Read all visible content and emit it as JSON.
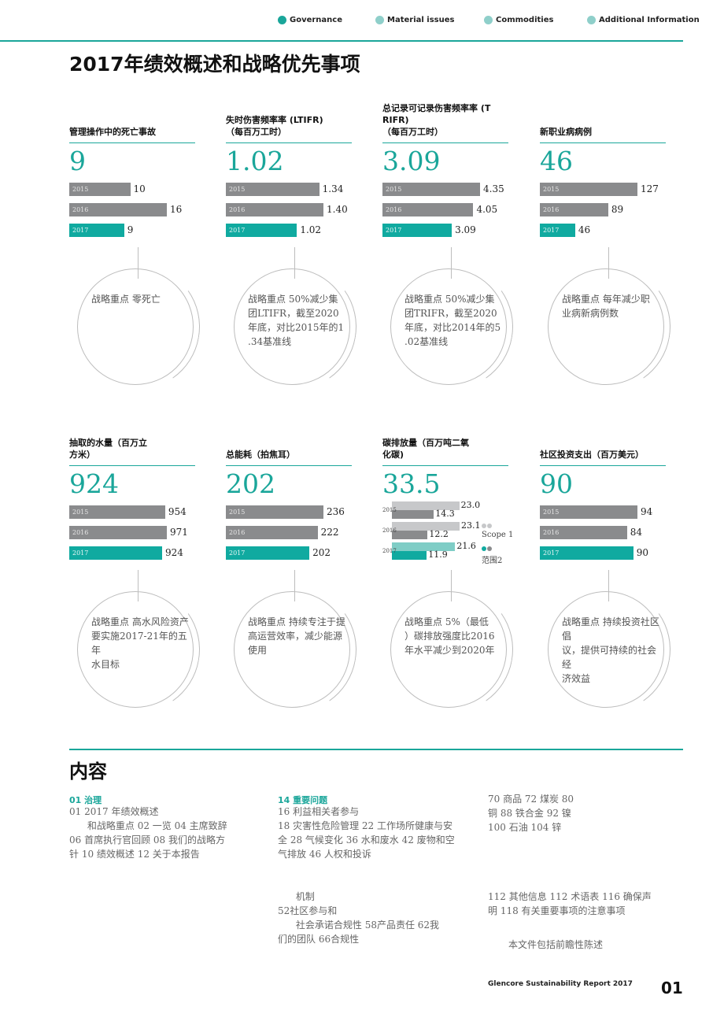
{
  "nav": [
    {
      "label": "Governance",
      "style": "solid"
    },
    {
      "label": "Material issues",
      "style": "light"
    },
    {
      "label": "Commodities",
      "style": "light"
    },
    {
      "label": "Additional Information",
      "style": "light"
    }
  ],
  "title": "2017年绩效概述和战略优先事项",
  "kpis": [
    {
      "title_lines": [
        "管理操作中的死亡事故"
      ],
      "value": "9",
      "bars": [
        {
          "year": "2015",
          "value": 10
        },
        {
          "year": "2016",
          "value": 16
        },
        {
          "year": "2017",
          "value": 9
        }
      ],
      "max": 16,
      "priority_lines": [
        "战略重点 零死亡"
      ]
    },
    {
      "title_lines": [
        "失时伤害频率率 (LTIFR)",
        "（每百万工时）"
      ],
      "value": "1.02",
      "bars": [
        {
          "year": "2015",
          "value": "1.34"
        },
        {
          "year": "2016",
          "value": "1.40"
        },
        {
          "year": "2017",
          "value": "1.02"
        }
      ],
      "max": 1.4,
      "priority_lines": [
        "战略重点 50%减少集",
        "团LTIFR，截至2020",
        "年底，对比2015年的1",
        ".34基准线"
      ]
    },
    {
      "title_lines": [
        "总记录可记录伤害频率率 (T",
        "RIFR)",
        "（每百万工时）"
      ],
      "value": "3.09",
      "bars": [
        {
          "year": "2015",
          "value": "4.35"
        },
        {
          "year": "2016",
          "value": "4.05"
        },
        {
          "year": "2017",
          "value": "3.09"
        }
      ],
      "max": 4.35,
      "priority_lines": [
        "战略重点 50%减少集",
        "团TRIFR，截至2020",
        "年底，对比2014年的5",
        ".02基准线"
      ]
    },
    {
      "title_lines": [
        "新职业病病例"
      ],
      "value": "46",
      "bars": [
        {
          "year": "2015",
          "value": 127
        },
        {
          "year": "2016",
          "value": 89
        },
        {
          "year": "2017",
          "value": 46
        }
      ],
      "max": 127,
      "priority_lines": [
        "战略重点 每年减少职",
        "业病新病例数"
      ]
    },
    {
      "title_lines": [
        "抽取的水量（百万立",
        "方米）"
      ],
      "value": "924",
      "bars": [
        {
          "year": "2015",
          "value": 954
        },
        {
          "year": "2016",
          "value": 971
        },
        {
          "year": "2017",
          "value": 924
        }
      ],
      "max": 971,
      "priority_lines": [
        "战略重点 高水风险资产",
        "要实施2017-21年的五年",
        "水目标"
      ]
    },
    {
      "title_lines": [
        "总能耗（拍焦耳）"
      ],
      "value": "202",
      "bars": [
        {
          "year": "2015",
          "value": 236
        },
        {
          "year": "2016",
          "value": 222
        },
        {
          "year": "2017",
          "value": 202
        }
      ],
      "max": 236,
      "priority_lines": [
        "战略重点 持续专注于提",
        "高运营效率，减少能源",
        "使用"
      ]
    },
    {
      "title_lines": [
        "碳排放量（百万吨二氧",
        "化碳)"
      ],
      "value": "33.5",
      "priority_lines": [
        "战略重点 5%（最低",
        "）碳排放强度比2016",
        "年水平减少到2020年"
      ]
    },
    {
      "title_lines": [
        "社区投资支出（百万美元）"
      ],
      "value": "90",
      "bars": [
        {
          "year": "2015",
          "value": 94
        },
        {
          "year": "2016",
          "value": 84
        },
        {
          "year": "2017",
          "value": 90
        }
      ],
      "max": 94,
      "priority_lines": [
        "战略重点 持续投资社区倡",
        "议，提供可持续的社会经",
        "济效益"
      ]
    }
  ],
  "chart_data": {
    "type": "bar",
    "categories": [
      "2015",
      "2016",
      "2017"
    ],
    "series": [
      {
        "name": "Scope 1",
        "values": [
          23.0,
          23.1,
          21.6
        ]
      },
      {
        "name": "范围2",
        "values": [
          14.3,
          12.2,
          11.9
        ]
      }
    ],
    "value_labels": [
      "23.0",
      "23.1",
      "21.6",
      "14.3",
      "12.2",
      "11.9"
    ],
    "max": 23.1
  },
  "colors": {
    "accent": "#1aa69a",
    "bar_grey": "#8a8b8d",
    "scope1_prior": "#c7c8ca",
    "scope1_2017": "#7fcdc6",
    "scope2_prior": "#8a8b8d",
    "scope2_2017": "#10aaa0"
  },
  "contents": {
    "title": "内容",
    "col1": {
      "head": "01 治理",
      "lines": [
        "01 2017 年绩效概述",
        "      和战略重点 02 一览 04 主席致辞",
        "06 首席执行官回顾 08 我们的战略方",
        "针 10 绩效概述 12 关于本报告"
      ]
    },
    "col2": {
      "head": "14 重要问题",
      "lines": [
        "16 利益相关者参与",
        "18 灾害性危险管理 22 工作场所健康与安",
        "全 28 气候变化 36 水和废水 42 废物和空",
        "气排放 46 人权和投诉"
      ]
    },
    "col2b": {
      "lines": [
        "      机制",
        "52社区参与和",
        "      社会承诺合规性 58产品责任 62我",
        "们的团队 66合规性"
      ]
    },
    "col3": {
      "lines": [
        "70 商品 72 煤炭 80",
        "铜 88 铁合金 92 镍",
        "100 石油 104 锌"
      ]
    },
    "col3b": {
      "lines": [
        "112 其他信息 112 术语表 116 确保声",
        "明 118 有关重要事项的注意事项"
      ]
    },
    "note": "本文件包括前瞻性陈述"
  },
  "footer": {
    "text": "Glencore Sustainability Report 2017",
    "page": "01"
  }
}
